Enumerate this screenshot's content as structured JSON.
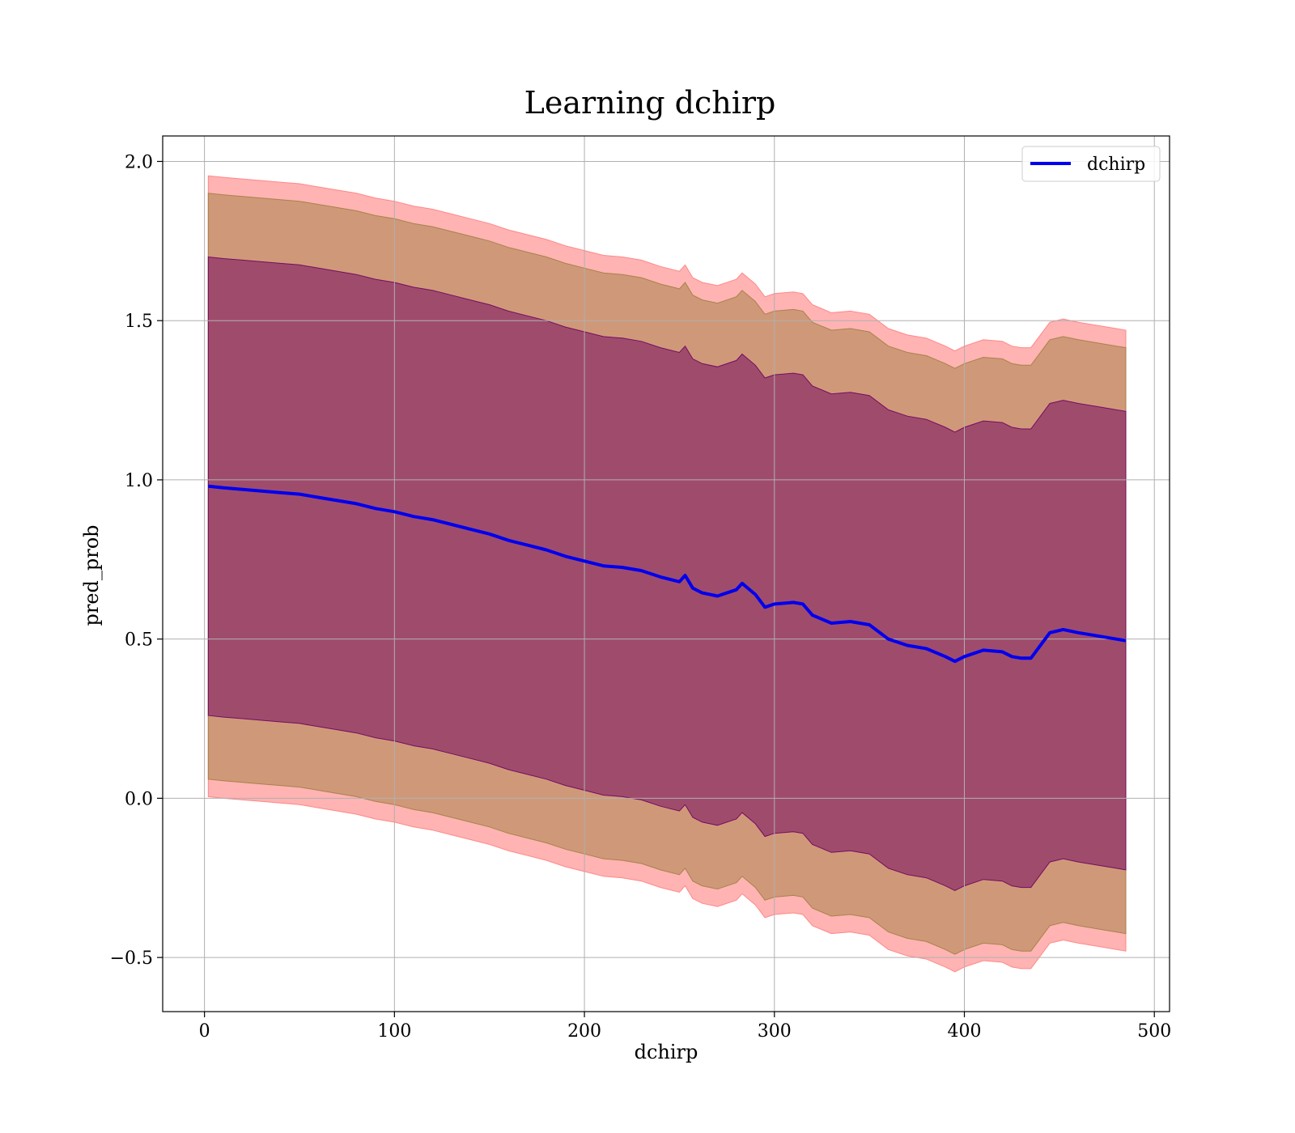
{
  "chart_data": {
    "type": "line",
    "title": "Learning dchirp",
    "xlabel": "dchirp",
    "ylabel": "pred_prob",
    "xlim": [
      -22,
      508
    ],
    "ylim": [
      -0.67,
      2.08
    ],
    "xticks": [
      0,
      100,
      200,
      300,
      400,
      500
    ],
    "yticks": [
      -0.5,
      0.0,
      0.5,
      1.0,
      1.5,
      2.0
    ],
    "ytick_labels": [
      "−0.5",
      "0.0",
      "0.5",
      "1.0",
      "1.5",
      "2.0"
    ],
    "grid": true,
    "legend_position": "top-right",
    "series": [
      {
        "name": "dchirp",
        "color": "#0000ee",
        "x": [
          2,
          10,
          20,
          30,
          40,
          50,
          60,
          70,
          80,
          90,
          100,
          110,
          120,
          130,
          140,
          150,
          160,
          170,
          180,
          190,
          200,
          210,
          220,
          230,
          240,
          250,
          253,
          257,
          262,
          270,
          280,
          283,
          290,
          295,
          300,
          310,
          315,
          320,
          330,
          340,
          350,
          360,
          370,
          380,
          390,
          395,
          400,
          410,
          420,
          425,
          430,
          435,
          445,
          452,
          460,
          470,
          480,
          485
        ],
        "y": [
          0.98,
          0.975,
          0.97,
          0.965,
          0.96,
          0.955,
          0.945,
          0.935,
          0.925,
          0.91,
          0.9,
          0.885,
          0.875,
          0.86,
          0.845,
          0.83,
          0.81,
          0.795,
          0.78,
          0.76,
          0.745,
          0.73,
          0.725,
          0.715,
          0.695,
          0.68,
          0.7,
          0.66,
          0.645,
          0.635,
          0.655,
          0.675,
          0.64,
          0.6,
          0.61,
          0.615,
          0.61,
          0.575,
          0.55,
          0.555,
          0.545,
          0.5,
          0.48,
          0.47,
          0.445,
          0.43,
          0.445,
          0.465,
          0.46,
          0.445,
          0.44,
          0.44,
          0.52,
          0.53,
          0.52,
          0.51,
          0.5,
          0.495
        ]
      }
    ],
    "bands": [
      {
        "color": "#ff8080",
        "opacity": 0.6,
        "offset": 0.975
      },
      {
        "color": "#a08040",
        "opacity": 0.5,
        "offset": 0.92
      },
      {
        "color": "#700060",
        "opacity": 0.5,
        "offset": 0.72
      }
    ]
  }
}
